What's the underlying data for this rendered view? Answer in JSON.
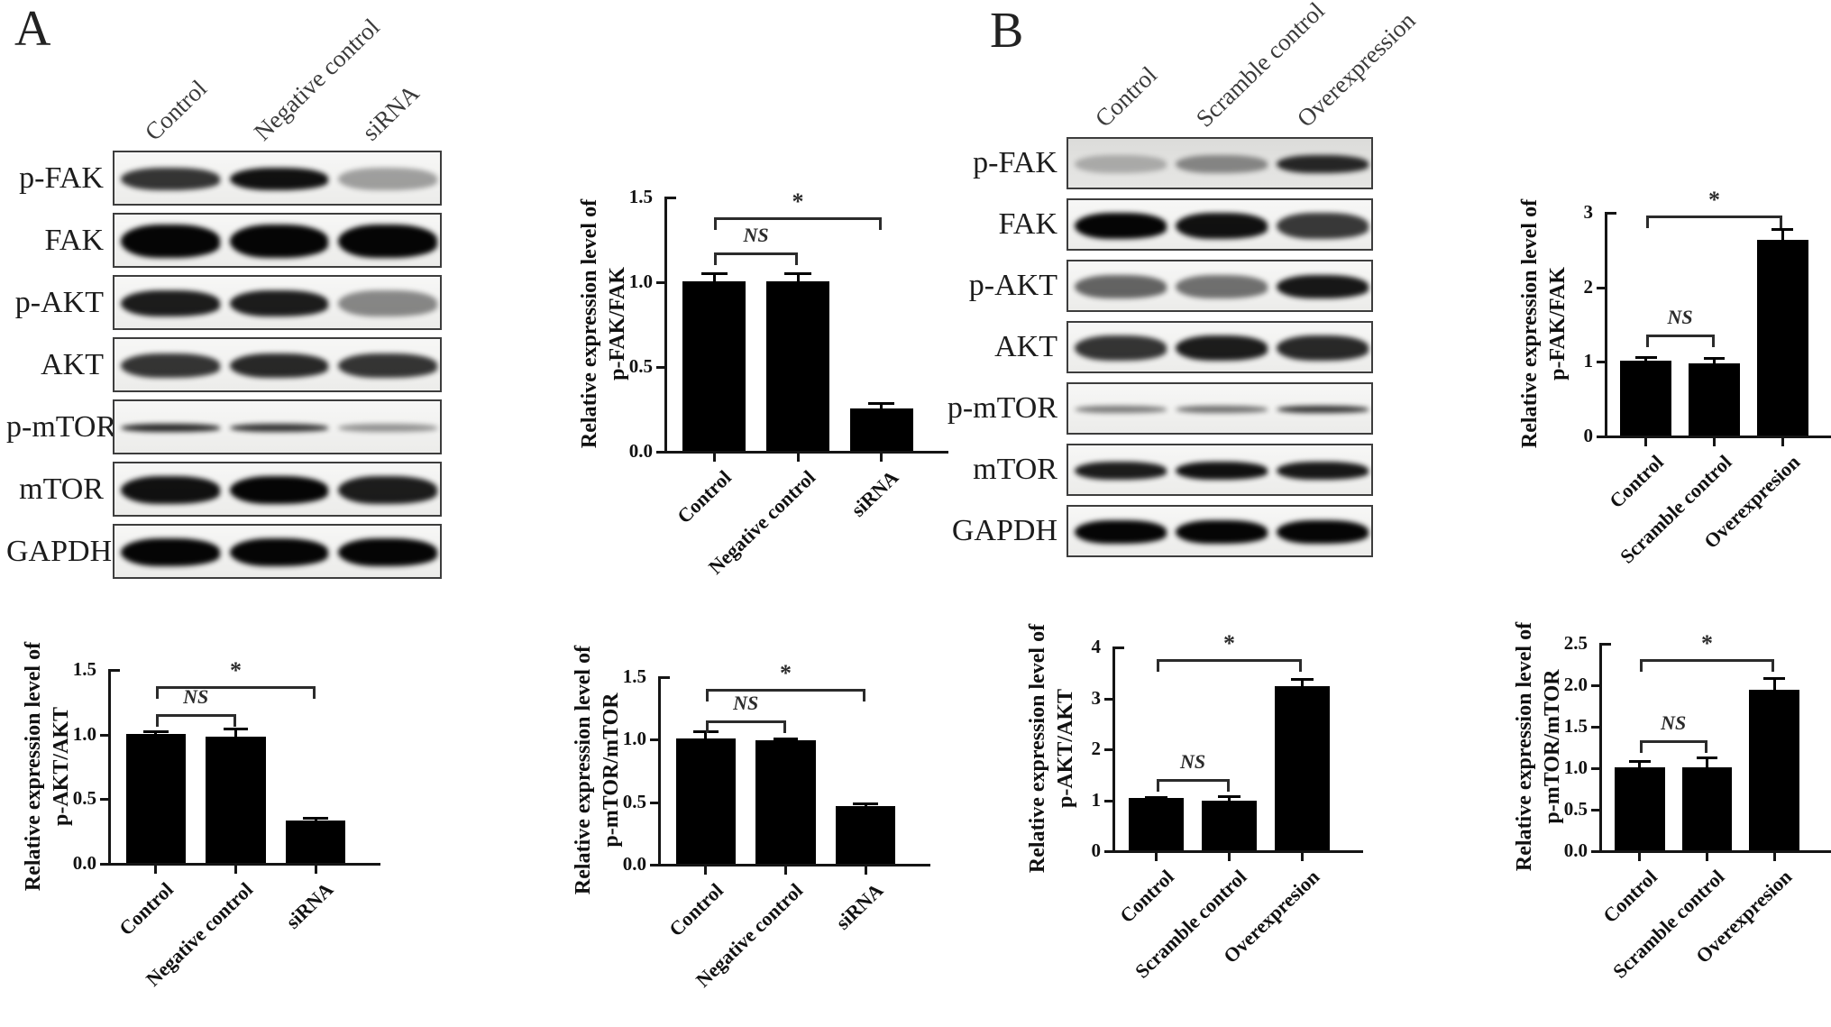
{
  "figure": {
    "panels": [
      {
        "label": "A",
        "blot": {
          "lane_labels": [
            "Control",
            "Negative control",
            "siRNA"
          ],
          "rows": [
            {
              "label": "p-FAK",
              "thickness": 0.4,
              "bands": [
                0.8,
                0.95,
                0.35
              ]
            },
            {
              "label": "FAK",
              "thickness": 0.6,
              "bands": [
                1.0,
                1.0,
                1.0
              ]
            },
            {
              "label": "p-AKT",
              "thickness": 0.48,
              "bands": [
                0.9,
                0.9,
                0.45
              ]
            },
            {
              "label": "AKT",
              "thickness": 0.44,
              "bands": [
                0.8,
                0.85,
                0.8
              ]
            },
            {
              "label": "p-mTOR",
              "thickness": 0.15,
              "bands": [
                0.85,
                0.8,
                0.4
              ]
            },
            {
              "label": "mTOR",
              "thickness": 0.5,
              "bands": [
                0.95,
                1.0,
                0.9
              ]
            },
            {
              "label": "GAPDH",
              "thickness": 0.5,
              "bands": [
                1.0,
                1.0,
                1.0
              ]
            }
          ]
        }
      },
      {
        "label": "B",
        "blot": {
          "lane_labels": [
            "Control",
            "Scramble control",
            "Overexpression"
          ],
          "rows": [
            {
              "label": "p-FAK",
              "thickness": 0.34,
              "bands": [
                0.25,
                0.42,
                0.85
              ],
              "bg": "#dcdcda"
            },
            {
              "label": "FAK",
              "thickness": 0.5,
              "bands": [
                1.0,
                0.95,
                0.78
              ]
            },
            {
              "label": "p-AKT",
              "thickness": 0.44,
              "bands": [
                0.6,
                0.55,
                0.92
              ]
            },
            {
              "label": "AKT",
              "thickness": 0.48,
              "bands": [
                0.8,
                0.9,
                0.85
              ]
            },
            {
              "label": "p-mTOR",
              "thickness": 0.13,
              "bands": [
                0.5,
                0.55,
                0.8
              ]
            },
            {
              "label": "mTOR",
              "thickness": 0.34,
              "bands": [
                0.9,
                0.95,
                0.92
              ]
            },
            {
              "label": "GAPDH",
              "thickness": 0.46,
              "bands": [
                1.0,
                1.0,
                1.0
              ]
            }
          ]
        }
      }
    ]
  },
  "chart_data": [
    {
      "id": "A1",
      "panel": "A",
      "type": "bar",
      "ylabel_lines": [
        "Relative expression level of",
        "p-FAK/FAK"
      ],
      "categories": [
        "Control",
        "Negative control",
        "siRNA"
      ],
      "values": [
        1.0,
        1.0,
        0.25
      ],
      "errors": [
        0.05,
        0.05,
        0.03
      ],
      "ylim": [
        0,
        1.5
      ],
      "yticks": [
        0,
        0.5,
        1.0,
        1.5
      ],
      "ytick_labels": [
        "0.0",
        "0.5",
        "1.0",
        "1.5"
      ],
      "annotations": [
        {
          "label": "NS",
          "from": 0,
          "to": 1,
          "y": 1.17
        },
        {
          "label": "*",
          "from": 0,
          "to": 2,
          "y": 1.38
        }
      ],
      "bar_color": "#000000",
      "grid": false,
      "legend": "none"
    },
    {
      "id": "A2",
      "panel": "A",
      "type": "bar",
      "ylabel_lines": [
        "Relative expression level of",
        "p-AKT/AKT"
      ],
      "categories": [
        "Control",
        "Negative control",
        "siRNA"
      ],
      "values": [
        1.0,
        0.98,
        0.33
      ],
      "errors": [
        0.02,
        0.06,
        0.02
      ],
      "ylim": [
        0,
        1.5
      ],
      "yticks": [
        0,
        0.5,
        1.0,
        1.5
      ],
      "ytick_labels": [
        "0.0",
        "0.5",
        "1.0",
        "1.5"
      ],
      "annotations": [
        {
          "label": "NS",
          "from": 0,
          "to": 1,
          "y": 1.15
        },
        {
          "label": "*",
          "from": 0,
          "to": 2,
          "y": 1.37
        }
      ],
      "bar_color": "#000000",
      "grid": false,
      "legend": "none"
    },
    {
      "id": "A3",
      "panel": "A",
      "type": "bar",
      "ylabel_lines": [
        "Relative expression level of",
        "p-mTOR/mTOR"
      ],
      "categories": [
        "Control",
        "Negative control",
        "siRNA"
      ],
      "values": [
        1.0,
        0.99,
        0.46
      ],
      "errors": [
        0.06,
        0.015,
        0.025
      ],
      "ylim": [
        0,
        1.5
      ],
      "yticks": [
        0,
        0.5,
        1.0,
        1.5
      ],
      "ytick_labels": [
        "0.0",
        "0.5",
        "1.0",
        "1.5"
      ],
      "annotations": [
        {
          "label": "NS",
          "from": 0,
          "to": 1,
          "y": 1.15
        },
        {
          "label": "*",
          "from": 0,
          "to": 2,
          "y": 1.4
        }
      ],
      "bar_color": "#000000",
      "grid": false,
      "legend": "none"
    },
    {
      "id": "B1",
      "panel": "B",
      "type": "bar",
      "ylabel_lines": [
        "Relative expression level of",
        "p-FAK/FAK"
      ],
      "categories": [
        "Control",
        "Scramble control",
        "Overexpresion"
      ],
      "values": [
        1.0,
        0.97,
        2.62
      ],
      "errors": [
        0.05,
        0.07,
        0.15
      ],
      "ylim": [
        0,
        3
      ],
      "yticks": [
        0,
        1,
        2,
        3
      ],
      "ytick_labels": [
        "0",
        "1",
        "2",
        "3"
      ],
      "annotations": [
        {
          "label": "NS",
          "from": 0,
          "to": 1,
          "y": 1.35
        },
        {
          "label": "*",
          "from": 0,
          "to": 2,
          "y": 2.95
        }
      ],
      "bar_color": "#000000",
      "grid": false,
      "legend": "none"
    },
    {
      "id": "B2",
      "panel": "B",
      "type": "bar",
      "ylabel_lines": [
        "Relative expression level of",
        "p-AKT/AKT"
      ],
      "categories": [
        "Control",
        "Scramble control",
        "Overexpresion"
      ],
      "values": [
        1.02,
        0.98,
        3.22
      ],
      "errors": [
        0.03,
        0.09,
        0.15
      ],
      "ylim": [
        0,
        4
      ],
      "yticks": [
        0,
        1,
        2,
        3,
        4
      ],
      "ytick_labels": [
        "0",
        "1",
        "2",
        "3",
        "4"
      ],
      "annotations": [
        {
          "label": "NS",
          "from": 0,
          "to": 1,
          "y": 1.4
        },
        {
          "label": "*",
          "from": 0,
          "to": 2,
          "y": 3.75
        }
      ],
      "bar_color": "#000000",
      "grid": false,
      "legend": "none"
    },
    {
      "id": "B3",
      "panel": "B",
      "type": "bar",
      "ylabel_lines": [
        "Relative expression level of",
        "p-mTOR/mTOR"
      ],
      "categories": [
        "Control",
        "Scramble control",
        "Overexpresion"
      ],
      "values": [
        1.0,
        1.0,
        1.93
      ],
      "errors": [
        0.08,
        0.12,
        0.15
      ],
      "ylim": [
        0,
        2.5
      ],
      "yticks": [
        0,
        0.5,
        1.0,
        1.5,
        2.0,
        2.5
      ],
      "ytick_labels": [
        "0.0",
        "0.5",
        "1.0",
        "1.5",
        "2.0",
        "2.5"
      ],
      "annotations": [
        {
          "label": "NS",
          "from": 0,
          "to": 1,
          "y": 1.33
        },
        {
          "label": "*",
          "from": 0,
          "to": 2,
          "y": 2.3
        }
      ],
      "bar_color": "#000000",
      "grid": false,
      "legend": "none"
    }
  ]
}
